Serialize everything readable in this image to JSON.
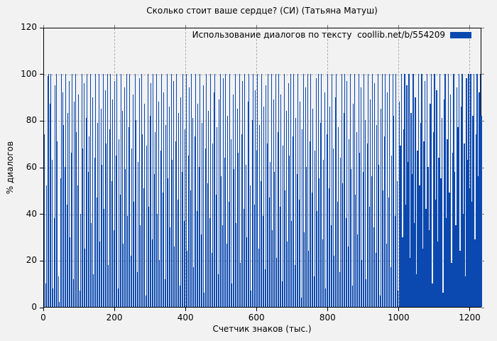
{
  "figure": {
    "title": "Сколько стоит ваше сердце? (СИ) (Татьяна Матуш)",
    "background_color": "#f2f2f2",
    "grid_color": "#b0b0b0",
    "border_color": "#000000"
  },
  "legend": {
    "label": "Использование диалогов по тексту  coollib.net/b/554209",
    "swatch_color": "#0b49b0",
    "position": "top-right"
  },
  "axes": {
    "x": {
      "label": "Счетчик знаков (тыс.)",
      "ticks": [
        0,
        200,
        400,
        600,
        800,
        1000,
        1200
      ],
      "min": 0,
      "max": 1233
    },
    "y": {
      "label": "% диалогов",
      "ticks": [
        0,
        20,
        40,
        60,
        80,
        100,
        120
      ],
      "min": 0,
      "max": 120
    }
  },
  "chart_data": {
    "type": "bar",
    "bar_style": "impulses",
    "title": "Сколько стоит ваше сердце? (СИ) (Татьяна Матуш)",
    "xlabel": "Счетчик знаков (тыс.)",
    "ylabel": "% диалогов",
    "xlim": [
      0,
      1233
    ],
    "ylim": [
      0,
      120
    ],
    "grid": true,
    "legend_position": "top-right",
    "x_start": 0,
    "x_step": 3,
    "series": [
      {
        "name": "Использование диалогов по тексту coollib.net/b/554209",
        "color": "#0b49b0",
        "values": [
          74,
          10,
          52,
          99,
          100,
          87,
          100,
          63,
          8,
          38,
          95,
          100,
          71,
          13,
          2,
          55,
          100,
          92,
          78,
          60,
          100,
          44,
          83,
          97,
          30,
          66,
          100,
          12,
          88,
          100,
          75,
          52,
          91,
          7,
          40,
          100,
          68,
          96,
          25,
          81,
          100,
          58,
          73,
          100,
          36,
          90,
          14,
          64,
          100,
          47,
          79,
          100,
          28,
          85,
          61,
          100,
          42,
          93,
          70,
          100,
          18,
          76,
          100,
          54,
          89,
          33,
          97,
          65,
          100,
          8,
          72,
          48,
          100,
          84,
          27,
          94,
          59,
          100,
          39,
          77,
          100,
          22,
          68,
          91,
          45,
          100,
          80,
          15,
          62,
          98,
          35,
          100,
          74,
          51,
          87,
          5,
          69,
          100,
          43,
          82,
          96,
          29,
          100,
          57,
          75,
          100,
          40,
          88,
          20,
          67,
          100,
          49,
          92,
          12,
          78,
          100,
          55,
          86,
          34,
          100,
          63,
          97,
          26,
          71,
          100,
          46,
          83,
          9,
          90,
          58,
          100,
          37,
          76,
          100,
          24,
          65,
          94,
          50,
          100,
          81,
          17,
          73,
          100,
          41,
          87,
          60,
          100,
          31,
          79,
          95,
          6,
          68,
          100,
          53,
          84,
          38,
          100,
          23,
          70,
          92,
          100,
          48,
          77,
          14,
          89,
          100,
          56,
          35,
          98,
          64,
          100,
          27,
          82,
          45,
          100,
          72,
          10,
          91,
          59,
          100,
          36,
          85,
          66,
          100,
          19,
          74,
          97,
          42,
          100,
          61,
          30,
          88,
          100,
          52,
          7,
          80,
          100,
          44,
          93,
          67,
          100,
          25,
          78,
          54,
          100,
          39,
          86,
          16,
          95,
          70,
          100,
          47,
          62,
          100,
          33,
          89,
          58,
          100,
          21,
          75,
          100,
          43,
          91,
          11,
          69,
          100,
          50,
          84,
          28,
          96,
          65,
          100,
          37,
          73,
          100,
          18,
          81,
          57,
          100,
          46,
          88,
          4,
          76,
          100,
          32,
          94,
          60,
          100,
          24,
          71,
          100,
          49,
          85,
          13,
          67,
          98,
          41,
          100,
          55,
          79,
          100,
          29,
          63,
          92,
          8,
          74,
          100,
          51,
          86,
          35,
          100,
          68,
          22,
          90,
          100,
          45,
          77,
          15,
          64,
          100,
          53,
          83,
          100,
          38,
          97,
          26,
          72,
          100,
          59,
          9,
          87,
          100,
          48,
          75,
          31,
          100,
          66,
          94,
          20,
          58,
          100,
          80,
          12,
          70,
          100,
          43,
          89,
          56,
          100,
          34,
          96,
          23,
          78,
          100,
          61,
          5,
          85,
          100,
          50,
          73,
          100,
          27,
          92,
          47,
          100,
          17,
          65,
          100,
          82,
          39,
          100,
          54,
          7,
          88,
          69,
          100,
          30,
          76,
          100,
          44,
          95,
          62,
          100,
          21,
          83,
          57,
          100,
          36,
          90,
          14,
          67,
          100,
          52,
          79,
          100,
          25,
          71,
          97,
          42,
          100,
          60,
          33,
          87,
          100,
          10,
          75,
          100,
          46,
          93,
          28,
          64,
          100,
          55,
          81,
          6,
          89,
          100,
          38,
          72,
          100,
          49,
          91,
          19,
          66,
          100,
          58,
          35,
          94,
          77,
          100,
          24,
          86,
          100,
          40,
          70,
          13,
          98,
          63,
          100,
          51,
          100,
          45,
          82,
          100,
          29,
          74,
          100,
          56,
          92,
          100,
          82
        ]
      }
    ]
  }
}
